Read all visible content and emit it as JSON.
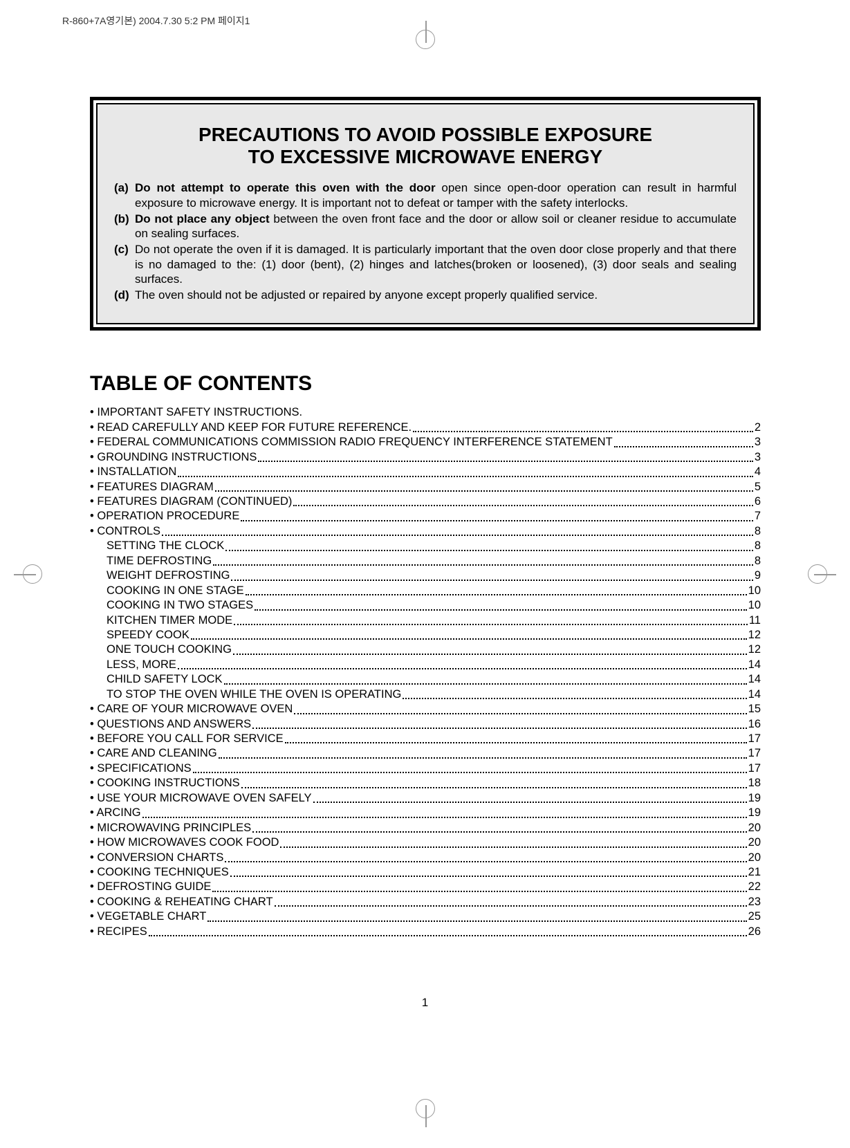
{
  "header": "R-860+7A영기본) 2004.7.30 5:2 PM 페이지1",
  "warning": {
    "title_line1": "PRECAUTIONS TO AVOID POSSIBLE EXPOSURE",
    "title_line2": "TO EXCESSIVE MICROWAVE ENERGY",
    "items": [
      {
        "label": "(a)",
        "bold": "Do not attempt to operate this oven with the door",
        "rest": " open since open-door operation can result in harmful exposure to microwave energy. It is important not to defeat or tamper with the safety interlocks."
      },
      {
        "label": "(b)",
        "bold": "Do not place any object",
        "rest": " between the oven front face and the door or allow soil or cleaner residue to accumulate on sealing surfaces."
      },
      {
        "label": "(c)",
        "bold": "",
        "rest": "Do not operate the oven if it is damaged. It is particularly important that the oven door close properly and that there is no damaged to the:  (1) door (bent), (2) hinges and latches(broken or loosened), (3) door seals and sealing surfaces."
      },
      {
        "label": "(d)",
        "bold": "",
        "rest": "The oven should not be adjusted or repaired by anyone except properly qualified service."
      }
    ]
  },
  "toc_title": "TABLE OF CONTENTS",
  "toc": [
    {
      "t": "• IMPORTANT SAFETY INSTRUCTIONS.",
      "p": "",
      "nodots": true
    },
    {
      "t": "• READ CAREFULLY AND KEEP FOR FUTURE REFERENCE.",
      "p": "2"
    },
    {
      "t": "• FEDERAL COMMUNICATIONS COMMISSION RADIO FREQUENCY INTERFERENCE STATEMENT",
      "p": "3"
    },
    {
      "t": "• GROUNDING INSTRUCTIONS",
      "p": "3"
    },
    {
      "t": "• INSTALLATION",
      "p": "4"
    },
    {
      "t": "• FEATURES DIAGRAM",
      "p": "5"
    },
    {
      "t": "• FEATURES DIAGRAM (CONTINUED)",
      "p": "6"
    },
    {
      "t": "• OPERATION PROCEDURE",
      "p": "7"
    },
    {
      "t": "• CONTROLS",
      "p": "8"
    },
    {
      "t": "SETTING THE CLOCK",
      "p": "8",
      "sub": true
    },
    {
      "t": "TIME DEFROSTING",
      "p": "8",
      "sub": true
    },
    {
      "t": "WEIGHT DEFROSTING",
      "p": "9",
      "sub": true
    },
    {
      "t": "COOKING IN ONE STAGE",
      "p": "10",
      "sub": true
    },
    {
      "t": "COOKING IN TWO STAGES",
      "p": "10",
      "sub": true
    },
    {
      "t": "KITCHEN TIMER MODE",
      "p": "11",
      "sub": true
    },
    {
      "t": "SPEEDY COOK",
      "p": "12",
      "sub": true
    },
    {
      "t": "ONE TOUCH COOKING",
      "p": "12",
      "sub": true
    },
    {
      "t": "LESS, MORE",
      "p": "14",
      "sub": true
    },
    {
      "t": "CHILD SAFETY LOCK",
      "p": "14",
      "sub": true
    },
    {
      "t": "TO STOP THE OVEN WHILE THE OVEN IS OPERATING",
      "p": "14",
      "sub": true
    },
    {
      "t": "• CARE OF YOUR MICROWAVE OVEN",
      "p": "15"
    },
    {
      "t": "• QUESTIONS AND ANSWERS",
      "p": "16"
    },
    {
      "t": "• BEFORE YOU CALL FOR SERVICE",
      "p": "17"
    },
    {
      "t": "• CARE AND CLEANING",
      "p": "17"
    },
    {
      "t": "• SPECIFICATIONS",
      "p": "17"
    },
    {
      "t": "• COOKING INSTRUCTIONS",
      "p": "18"
    },
    {
      "t": "• USE YOUR MICROWAVE OVEN SAFELY",
      "p": "19"
    },
    {
      "t": "• ARCING",
      "p": "19"
    },
    {
      "t": "• MICROWAVING PRINCIPLES",
      "p": "20"
    },
    {
      "t": "• HOW MICROWAVES COOK FOOD",
      "p": "20"
    },
    {
      "t": "• CONVERSION CHARTS",
      "p": "20"
    },
    {
      "t": "• COOKING TECHNIQUES",
      "p": "21"
    },
    {
      "t": "• DEFROSTING GUIDE",
      "p": "22"
    },
    {
      "t": "• COOKING & REHEATING CHART",
      "p": "23"
    },
    {
      "t": "• VEGETABLE CHART",
      "p": "25"
    },
    {
      "t": "• RECIPES",
      "p": "26"
    }
  ],
  "page_number": "1"
}
